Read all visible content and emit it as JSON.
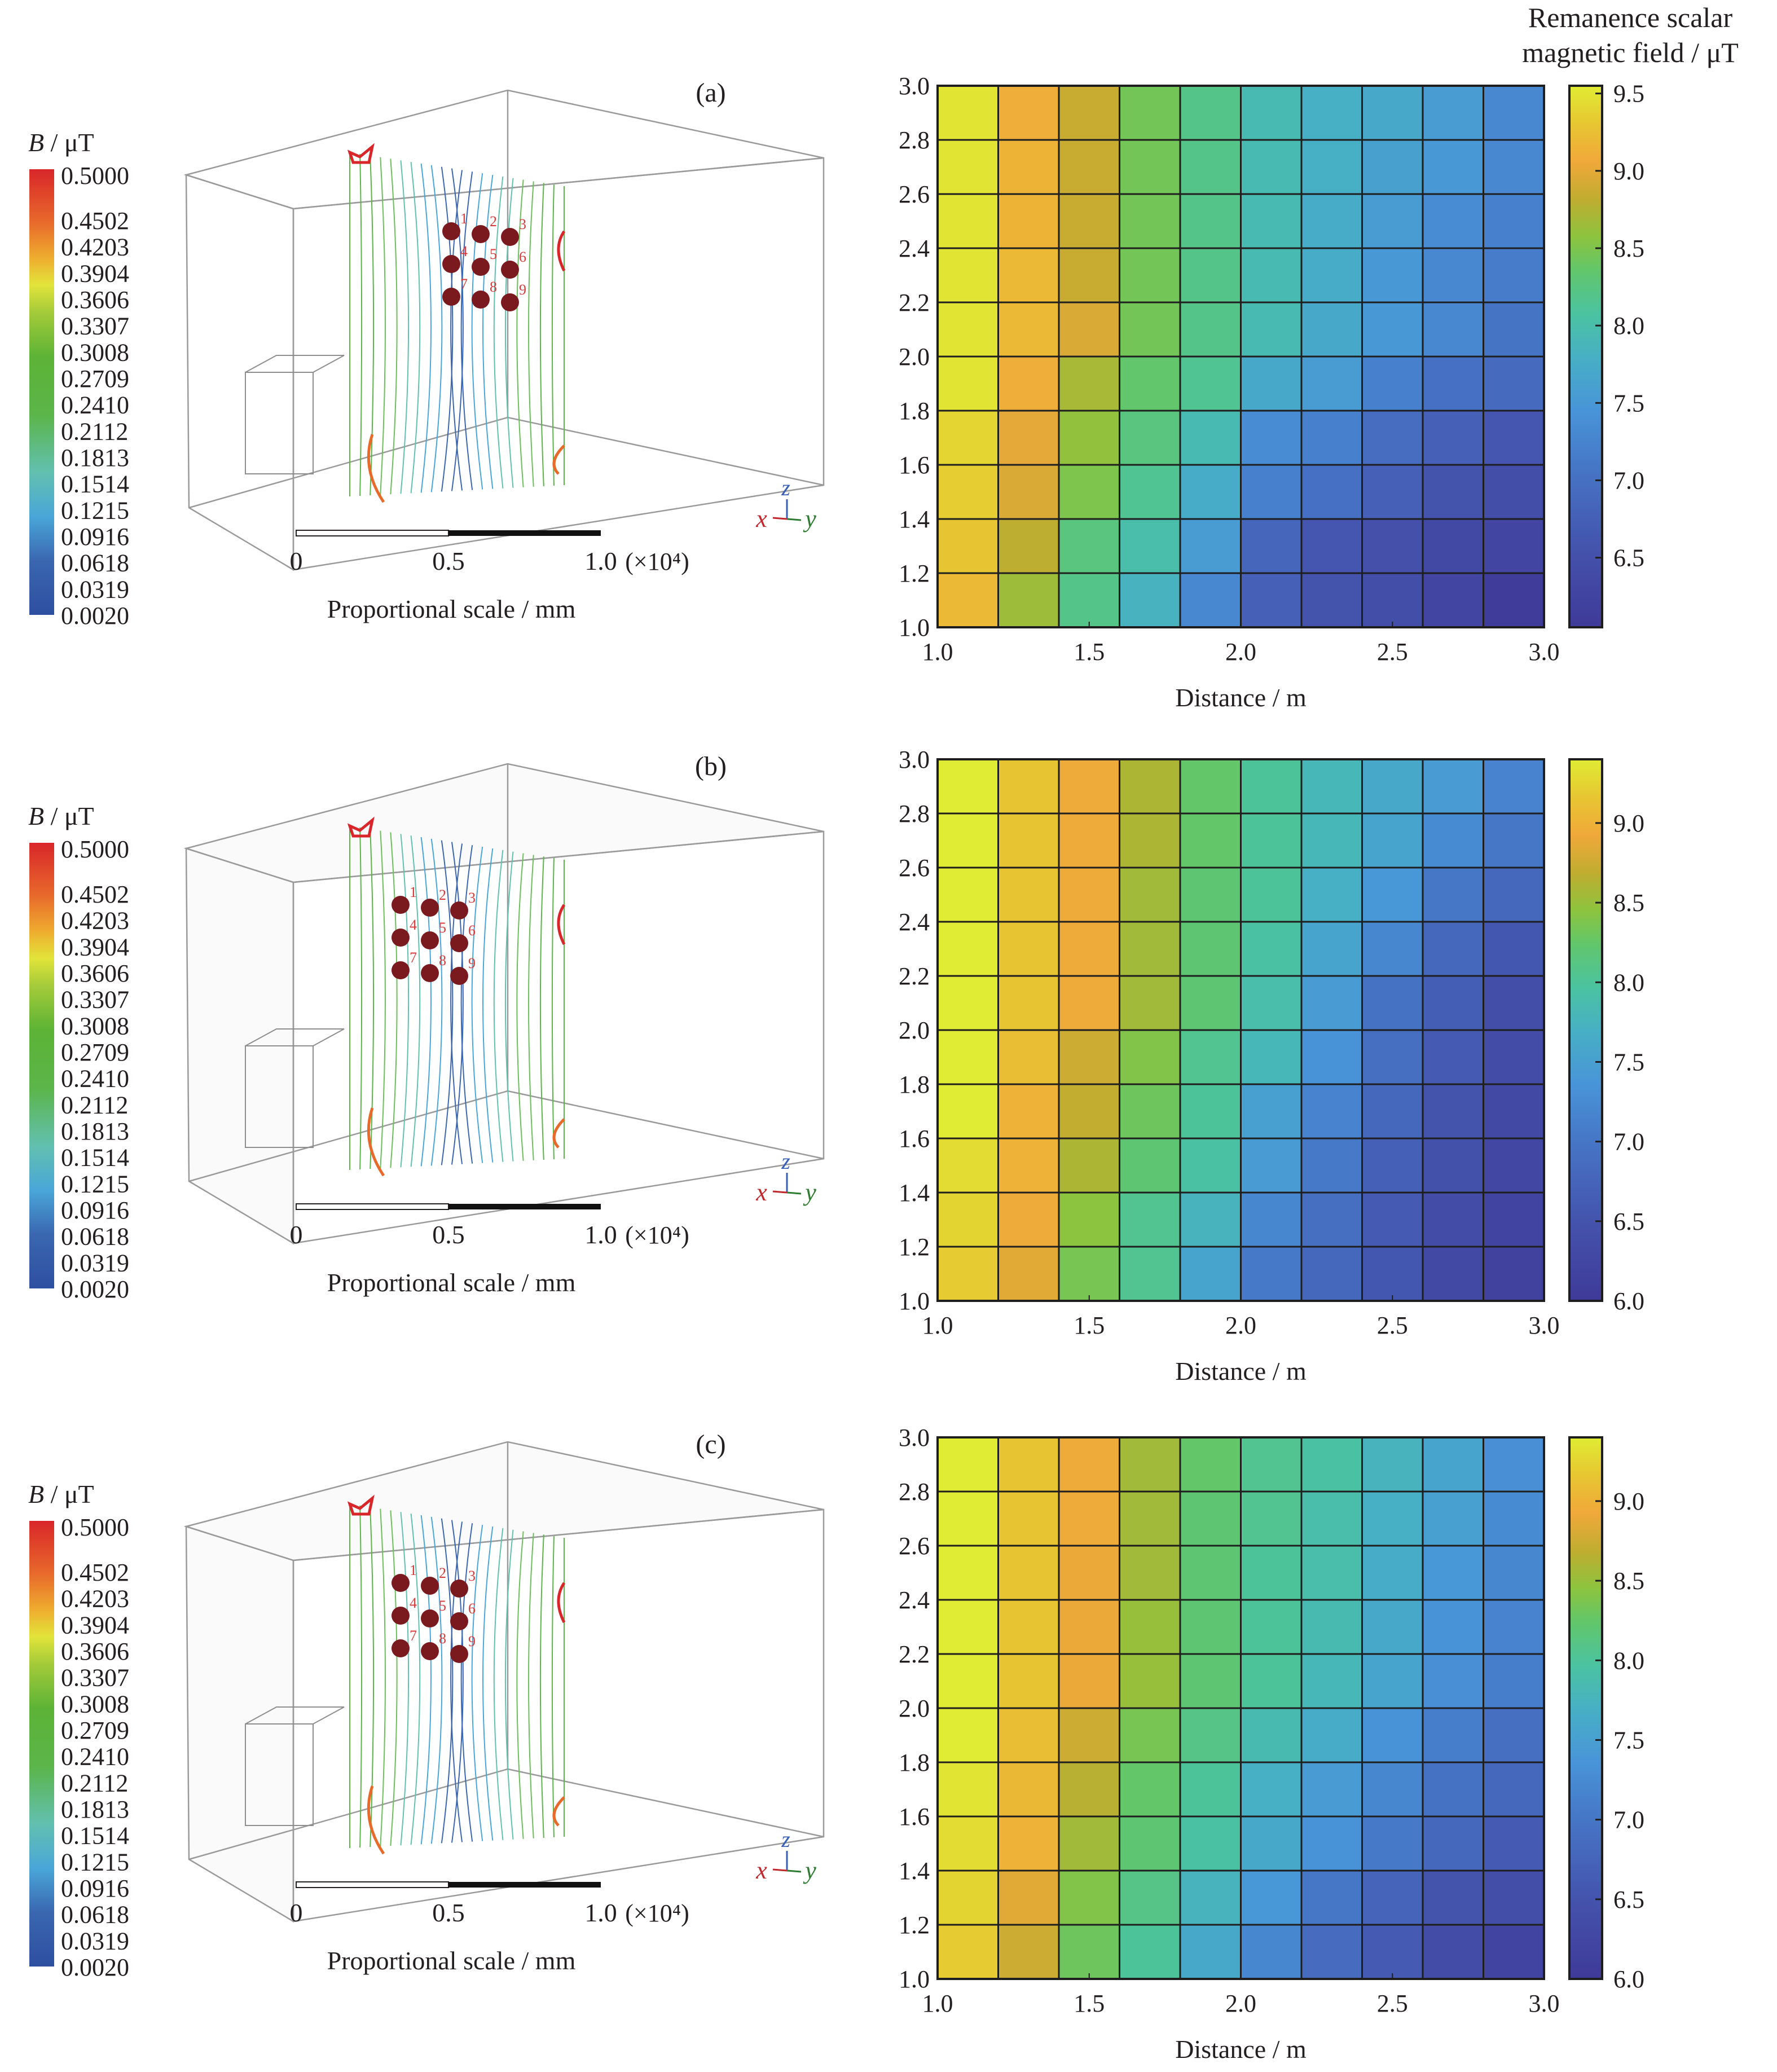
{
  "figure": {
    "right_colorbar_title_line1": "Remanence scalar",
    "right_colorbar_title_line2": "magnetic field / μT",
    "left_colorbar_title_italic": "B",
    "left_colorbar_title_rest": " / μT",
    "left_colorbar_ticks": [
      "0.5000",
      "0.4502",
      "0.4203",
      "0.3904",
      "0.3606",
      "0.3307",
      "0.3008",
      "0.2709",
      "0.2410",
      "0.2112",
      "0.1813",
      "0.1514",
      "0.1215",
      "0.0916",
      "0.0618",
      "0.0319",
      "0.0020"
    ],
    "scale_bar": {
      "ticks": [
        "0",
        "0.5",
        "1.0"
      ],
      "multiplier": "(×10⁴)",
      "label": "Proportional scale / mm"
    },
    "axis_triad": {
      "x": "x",
      "y": "y",
      "z": "z"
    },
    "sensor_labels": [
      "1",
      "2",
      "3",
      "4",
      "5",
      "6",
      "7",
      "8",
      "9"
    ],
    "panels": [
      {
        "label": "(a)"
      },
      {
        "label": "(b)"
      },
      {
        "label": "(c)"
      }
    ]
  },
  "chart_data": [
    {
      "type": "heatmap",
      "panel": "(a)",
      "title": "",
      "xlabel": "Distance / m",
      "ylabel": "",
      "colorbar_label": "Remanence scalar magnetic field / μT",
      "xlim": [
        1.0,
        3.0
      ],
      "ylim": [
        1.0,
        3.0
      ],
      "x_ticks": [
        "1.0",
        "1.5",
        "2.0",
        "2.5",
        "3.0"
      ],
      "y_ticks": [
        "1.0",
        "1.2",
        "1.4",
        "1.6",
        "1.8",
        "2.0",
        "2.2",
        "2.4",
        "2.6",
        "2.8",
        "3.0"
      ],
      "colorbar_range": [
        6.05,
        9.55
      ],
      "colorbar_ticks": [
        "6.5",
        "7.0",
        "7.5",
        "8.0",
        "8.5",
        "9.0",
        "9.5"
      ],
      "x_centers": [
        1.1,
        1.3,
        1.5,
        1.7,
        1.9,
        2.1,
        2.3,
        2.5,
        2.7,
        2.9
      ],
      "y_centers_top_to_bottom": [
        2.9,
        2.7,
        2.5,
        2.3,
        2.1,
        1.9,
        1.7,
        1.5,
        1.3,
        1.1
      ],
      "values_top_to_bottom": [
        [
          9.5,
          9.1,
          8.85,
          8.45,
          8.2,
          7.95,
          7.8,
          7.7,
          7.55,
          7.3
        ],
        [
          9.5,
          9.15,
          8.85,
          8.45,
          8.2,
          7.95,
          7.8,
          7.6,
          7.5,
          7.3
        ],
        [
          9.5,
          9.15,
          8.85,
          8.45,
          8.2,
          7.95,
          7.75,
          7.55,
          7.35,
          7.2
        ],
        [
          9.5,
          9.2,
          8.85,
          8.45,
          8.2,
          7.95,
          7.75,
          7.5,
          7.3,
          7.15
        ],
        [
          9.5,
          9.2,
          8.95,
          8.45,
          8.2,
          7.95,
          7.7,
          7.5,
          7.3,
          7.05
        ],
        [
          9.5,
          9.1,
          8.7,
          8.35,
          8.15,
          7.7,
          7.55,
          7.2,
          7.0,
          6.9
        ],
        [
          9.4,
          9.0,
          8.6,
          8.25,
          7.95,
          7.35,
          7.2,
          6.95,
          6.75,
          6.6
        ],
        [
          9.35,
          8.95,
          8.5,
          8.15,
          7.75,
          7.2,
          7.0,
          6.75,
          6.55,
          6.45
        ],
        [
          9.3,
          8.8,
          8.25,
          8.0,
          7.55,
          6.85,
          6.6,
          6.5,
          6.35,
          6.3
        ],
        [
          9.2,
          8.65,
          8.2,
          7.85,
          7.3,
          6.75,
          6.55,
          6.45,
          6.3,
          6.1
        ]
      ]
    },
    {
      "type": "heatmap",
      "panel": "(b)",
      "title": "",
      "xlabel": "Distance / m",
      "ylabel": "",
      "xlim": [
        1.0,
        3.0
      ],
      "ylim": [
        1.0,
        3.0
      ],
      "x_ticks": [
        "1.0",
        "1.5",
        "2.0",
        "2.5",
        "3.0"
      ],
      "y_ticks": [
        "1.0",
        "1.2",
        "1.4",
        "1.6",
        "1.8",
        "2.0",
        "2.2",
        "2.4",
        "2.6",
        "2.8",
        "3.0"
      ],
      "colorbar_range": [
        6.0,
        9.4
      ],
      "colorbar_ticks": [
        "6.0",
        "6.5",
        "7.0",
        "7.5",
        "8.0",
        "8.5",
        "9.0"
      ],
      "x_centers": [
        1.1,
        1.3,
        1.5,
        1.7,
        1.9,
        2.1,
        2.3,
        2.5,
        2.7,
        2.9
      ],
      "y_centers_top_to_bottom": [
        2.9,
        2.7,
        2.5,
        2.3,
        2.1,
        1.9,
        1.7,
        1.5,
        1.3,
        1.1
      ],
      "values_top_to_bottom": [
        [
          9.4,
          9.15,
          8.95,
          8.6,
          8.25,
          8.0,
          7.8,
          7.6,
          7.45,
          7.15
        ],
        [
          9.4,
          9.15,
          8.95,
          8.6,
          8.25,
          8.0,
          7.8,
          7.55,
          7.25,
          7.0
        ],
        [
          9.4,
          9.15,
          8.95,
          8.55,
          8.2,
          8.0,
          7.7,
          7.4,
          7.0,
          6.8
        ],
        [
          9.4,
          9.15,
          8.95,
          8.55,
          8.2,
          7.95,
          7.55,
          7.2,
          6.8,
          6.55
        ],
        [
          9.4,
          9.15,
          8.95,
          8.55,
          8.2,
          7.9,
          7.45,
          6.95,
          6.65,
          6.4
        ],
        [
          9.4,
          9.1,
          8.75,
          8.4,
          8.05,
          7.8,
          7.35,
          6.9,
          6.6,
          6.35
        ],
        [
          9.4,
          9.0,
          8.7,
          8.3,
          8.0,
          7.5,
          7.15,
          6.8,
          6.5,
          6.3
        ],
        [
          9.3,
          9.0,
          8.6,
          8.2,
          7.95,
          7.45,
          7.05,
          6.7,
          6.45,
          6.25
        ],
        [
          9.25,
          8.95,
          8.45,
          8.05,
          7.75,
          7.2,
          6.9,
          6.6,
          6.35,
          6.2
        ],
        [
          9.2,
          8.85,
          8.35,
          8.05,
          7.55,
          7.05,
          6.8,
          6.55,
          6.3,
          6.15
        ]
      ]
    },
    {
      "type": "heatmap",
      "panel": "(c)",
      "title": "",
      "xlabel": "Distance / m",
      "ylabel": "",
      "xlim": [
        1.0,
        3.0
      ],
      "ylim": [
        1.0,
        3.0
      ],
      "x_ticks": [
        "1.0",
        "1.5",
        "2.0",
        "2.5",
        "3.0"
      ],
      "y_ticks": [
        "1.0",
        "1.2",
        "1.4",
        "1.6",
        "1.8",
        "2.0",
        "2.2",
        "2.4",
        "2.6",
        "2.8",
        "3.0"
      ],
      "colorbar_range": [
        6.0,
        9.4
      ],
      "colorbar_ticks": [
        "6.0",
        "6.5",
        "7.0",
        "7.5",
        "8.0",
        "8.5",
        "9.0"
      ],
      "x_centers": [
        1.1,
        1.3,
        1.5,
        1.7,
        1.9,
        2.1,
        2.3,
        2.5,
        2.7,
        2.9
      ],
      "y_centers_top_to_bottom": [
        2.9,
        2.7,
        2.5,
        2.3,
        2.1,
        1.9,
        1.7,
        1.5,
        1.3,
        1.1
      ],
      "values_top_to_bottom": [
        [
          9.4,
          9.15,
          8.95,
          8.55,
          8.25,
          8.05,
          7.95,
          7.75,
          7.55,
          7.3
        ],
        [
          9.4,
          9.15,
          8.95,
          8.55,
          8.2,
          8.05,
          7.9,
          7.7,
          7.5,
          7.25
        ],
        [
          9.4,
          9.15,
          8.9,
          8.55,
          8.2,
          8.0,
          7.9,
          7.65,
          7.4,
          7.2
        ],
        [
          9.4,
          9.15,
          8.9,
          8.5,
          8.2,
          8.0,
          7.85,
          7.6,
          7.35,
          7.15
        ],
        [
          9.4,
          9.15,
          8.9,
          8.5,
          8.2,
          8.0,
          7.8,
          7.55,
          7.3,
          7.1
        ],
        [
          9.4,
          9.1,
          8.75,
          8.35,
          8.1,
          7.85,
          7.65,
          7.35,
          7.1,
          6.9
        ],
        [
          9.35,
          9.05,
          8.65,
          8.25,
          8.0,
          7.7,
          7.45,
          7.2,
          6.95,
          6.8
        ],
        [
          9.3,
          9.0,
          8.55,
          8.2,
          7.95,
          7.6,
          7.35,
          7.05,
          6.8,
          6.6
        ],
        [
          9.25,
          8.85,
          8.4,
          8.1,
          7.75,
          7.4,
          7.0,
          6.75,
          6.5,
          6.4
        ],
        [
          9.2,
          8.75,
          8.3,
          8.0,
          7.6,
          7.2,
          6.85,
          6.6,
          6.35,
          6.2
        ]
      ]
    }
  ]
}
